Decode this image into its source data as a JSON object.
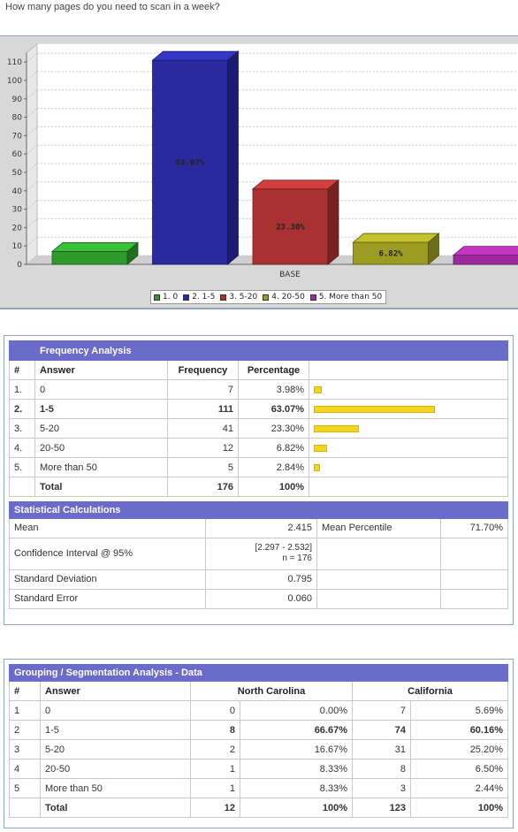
{
  "question": "How many pages do you need to scan in a week?",
  "chart_data": {
    "type": "bar",
    "title": "",
    "xlabel": "BASE",
    "ylabel": "",
    "ylim": [
      0,
      115
    ],
    "yticks": [
      0,
      10,
      20,
      30,
      40,
      50,
      60,
      70,
      80,
      90,
      100,
      110
    ],
    "categories": [
      "BASE"
    ],
    "series": [
      {
        "name": "1. 0",
        "value": 7,
        "label": "",
        "color": "#2e9a2e"
      },
      {
        "name": "2. 1-5",
        "value": 111,
        "label": "63.07%",
        "color": "#2a2a9e"
      },
      {
        "name": "3. 5-20",
        "value": 41,
        "label": "23.30%",
        "color": "#a83232"
      },
      {
        "name": "4. 20-50",
        "value": 12,
        "label": "6.82%",
        "color": "#9c9c22"
      },
      {
        "name": "5. More than 50",
        "value": 5,
        "label": "",
        "color": "#9c2a9c"
      }
    ],
    "grid": true,
    "legend_position": "bottom"
  },
  "frequency": {
    "title": "Frequency Analysis",
    "headers": {
      "num": "#",
      "answer": "Answer",
      "frequency": "Frequency",
      "percentage": "Percentage"
    },
    "rows": [
      {
        "num": "1.",
        "answer": "0",
        "frequency": "7",
        "percentage": "3.98%",
        "pct": 3.98
      },
      {
        "num": "2.",
        "answer": "1-5",
        "frequency": "111",
        "percentage": "63.07%",
        "pct": 63.07
      },
      {
        "num": "3.",
        "answer": "5-20",
        "frequency": "41",
        "percentage": "23.30%",
        "pct": 23.3
      },
      {
        "num": "4.",
        "answer": "20-50",
        "frequency": "12",
        "percentage": "6.82%",
        "pct": 6.82
      },
      {
        "num": "5.",
        "answer": "More than 50",
        "frequency": "5",
        "percentage": "2.84%",
        "pct": 2.84
      }
    ],
    "total": {
      "label": "Total",
      "frequency": "176",
      "percentage": "100%"
    }
  },
  "stats": {
    "title": "Statistical Calculations",
    "mean_label": "Mean",
    "mean_value": "2.415",
    "percentile_label": "Mean Percentile",
    "percentile_value": "71.70%",
    "ci_label": "Confidence Interval @ 95%",
    "ci_value": "[2.297 - 2.532]",
    "ci_n": "n = 176",
    "sd_label": "Standard Deviation",
    "sd_value": "0.795",
    "se_label": "Standard Error",
    "se_value": "0.060"
  },
  "grouping": {
    "title": "Grouping / Segmentation Analysis - Data",
    "headers": {
      "num": "#",
      "answer": "Answer",
      "nc": "North Carolina",
      "ca": "California"
    },
    "rows": [
      {
        "num": "1",
        "answer": "0",
        "nc_n": "0",
        "nc_p": "0.00%",
        "ca_n": "7",
        "ca_p": "5.69%"
      },
      {
        "num": "2",
        "answer": "1-5",
        "nc_n": "8",
        "nc_p": "66.67%",
        "ca_n": "74",
        "ca_p": "60.16%"
      },
      {
        "num": "3",
        "answer": "5-20",
        "nc_n": "2",
        "nc_p": "16.67%",
        "ca_n": "31",
        "ca_p": "25.20%"
      },
      {
        "num": "4",
        "answer": "20-50",
        "nc_n": "1",
        "nc_p": "8.33%",
        "ca_n": "8",
        "ca_p": "6.50%"
      },
      {
        "num": "5",
        "answer": "More than 50",
        "nc_n": "1",
        "nc_p": "8.33%",
        "ca_n": "3",
        "ca_p": "2.44%"
      }
    ],
    "total": {
      "label": "Total",
      "nc_n": "12",
      "nc_p": "100%",
      "ca_n": "123",
      "ca_p": "100%"
    }
  }
}
